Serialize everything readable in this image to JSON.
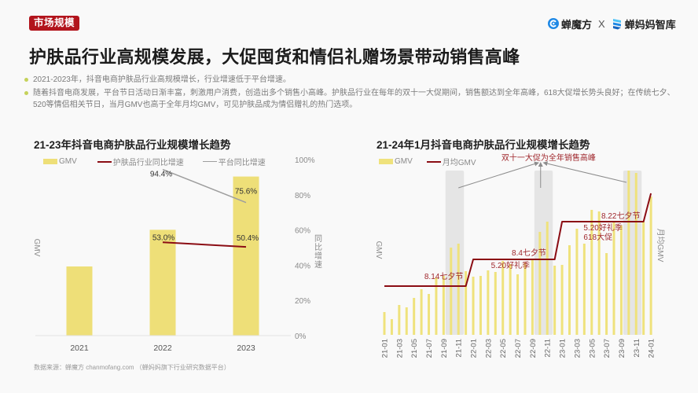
{
  "header": {
    "tag": "市场规模",
    "brand_left": "蝉魔方",
    "brand_x": "X",
    "brand_right": "蝉妈妈智库"
  },
  "title": "护肤品行业高规模发展，大促囤货和情侣礼赠场景带动销售高峰",
  "bullets": [
    "2021-2023年，抖音电商护肤品行业高规模增长，行业增速低于平台增速。",
    "随着抖音电商发展，平台节日活动日渐丰富，刺激用户消费，创造出多个销售小高峰。护肤品行业在每年的双十一大促期间，销售额达到全年高峰，618大促增长势头良好；在传统七夕、520等情侣相关节日，当月GMV也高于全年月均GMV，可见护肤品成为情侣赠礼的热门选项。"
  ],
  "source": "数据来源：蝉魔方 chanmofang.com （蝉妈妈旗下行业研究数据平台）",
  "colors": {
    "tag_bg": "#b2141c",
    "gmv_bar": "#eedf78",
    "gmv_bar_monthly": "#efe27c",
    "industry_line": "#8b0d14",
    "platform_line": "#9e9e9e",
    "monthly_avg_line": "#8b0d14",
    "highlight_band": "#e5e5e5",
    "annotation": "#a0282d",
    "arrow": "#8c8c8c",
    "brand_blue": "#1e88e5"
  },
  "chart_data": [
    {
      "type": "bar+line",
      "title": "21-23年抖音电商护肤品行业规模增长趋势",
      "categories": [
        "2021",
        "2022",
        "2023"
      ],
      "series": [
        {
          "name": "GMV",
          "type": "bar",
          "axis": "left",
          "values": [
            100,
            153,
            230
          ]
        },
        {
          "name": "护肤品行业同比增速",
          "type": "line",
          "axis": "right",
          "values": [
            null,
            53.0,
            50.4
          ],
          "labels": [
            "",
            "53.0%",
            "50.4%"
          ]
        },
        {
          "name": "平台同比增速",
          "type": "line",
          "axis": "right",
          "values": [
            null,
            94.4,
            75.6
          ],
          "labels": [
            "",
            "94.4%",
            "75.6%"
          ]
        }
      ],
      "xlabel": "",
      "ylabel_left": "GMV",
      "ylabel_right": "同比增速",
      "ylim_left": [
        0,
        255
      ],
      "ylim_right": [
        0,
        100
      ],
      "y_right_ticks": [
        "0%",
        "20%",
        "40%",
        "60%",
        "80%",
        "100%"
      ],
      "legend_position": "top",
      "grid": false
    },
    {
      "type": "bar+line",
      "title": "21-24年1月抖音电商护肤品行业规模增长趋势",
      "x": [
        "21-01",
        "21-02",
        "21-03",
        "21-04",
        "21-05",
        "21-06",
        "21-07",
        "21-08",
        "21-09",
        "21-10",
        "21-11",
        "21-12",
        "22-01",
        "22-02",
        "22-03",
        "22-04",
        "22-05",
        "22-06",
        "22-07",
        "22-08",
        "22-09",
        "22-10",
        "22-11",
        "22-12",
        "23-01",
        "23-02",
        "23-03",
        "23-04",
        "23-05",
        "23-06",
        "23-07",
        "23-08",
        "23-09",
        "23-10",
        "23-11",
        "23-12",
        "24-01"
      ],
      "x_tick_labels": [
        "21-01",
        "21-03",
        "21-05",
        "21-07",
        "21-09",
        "21-11",
        "22-01",
        "22-03",
        "22-05",
        "22-07",
        "22-09",
        "22-11",
        "23-01",
        "23-03",
        "23-05",
        "23-07",
        "23-09",
        "23-11",
        "24-01"
      ],
      "series": [
        {
          "name": "GMV",
          "type": "bar",
          "axis": "left",
          "values": [
            29,
            20,
            38,
            35,
            47,
            58,
            52,
            73,
            75,
            111,
            116,
            81,
            74,
            75,
            82,
            80,
            94,
            90,
            77,
            92,
            96,
            131,
            144,
            88,
            89,
            114,
            135,
            116,
            159,
            157,
            104,
            145,
            139,
            209,
            206,
            144,
            176
          ]
        },
        {
          "name": "月均GMV",
          "type": "line",
          "axis": "right",
          "values": [
            62,
            62,
            62,
            62,
            62,
            62,
            62,
            62,
            62,
            62,
            62,
            62,
            96,
            96,
            96,
            96,
            96,
            96,
            96,
            96,
            96,
            96,
            96,
            96,
            144,
            144,
            144,
            144,
            144,
            144,
            144,
            144,
            144,
            144,
            144,
            144,
            180
          ]
        }
      ],
      "xlabel": "",
      "ylabel_left": "GMV",
      "ylabel_right": "月均GMV",
      "ylim": [
        0,
        230
      ],
      "legend_position": "top",
      "grid": false,
      "highlight_bands": [
        [
          "21-10",
          "21-11"
        ],
        [
          "22-10",
          "22-11"
        ],
        [
          "23-10",
          "23-11"
        ]
      ],
      "annotations": [
        {
          "text": "双十一大促为全年销售高峰",
          "x_index": 15.8,
          "y": 226
        },
        {
          "text": "8.14七夕节",
          "x_index": 5.4,
          "y": 75
        },
        {
          "text": "8.4七夕节",
          "x_index": 17.2,
          "y": 105
        },
        {
          "text": "5.20好礼季",
          "x_index": 14.4,
          "y": 89
        },
        {
          "text": "8.22七夕节",
          "x_index": 29.3,
          "y": 152
        },
        {
          "text": "5.20好礼季",
          "x_index": 26.9,
          "y": 137
        },
        {
          "text": "618大促",
          "x_index": 26.9,
          "y": 125
        }
      ],
      "arrows": [
        {
          "from": [
            10.0,
            187
          ],
          "to": [
            20.8,
            219
          ]
        },
        {
          "from": [
            21.1,
            187
          ],
          "to": [
            21.1,
            219
          ]
        },
        {
          "from": [
            32.7,
            194
          ],
          "to": [
            21.5,
            219
          ]
        }
      ]
    }
  ]
}
